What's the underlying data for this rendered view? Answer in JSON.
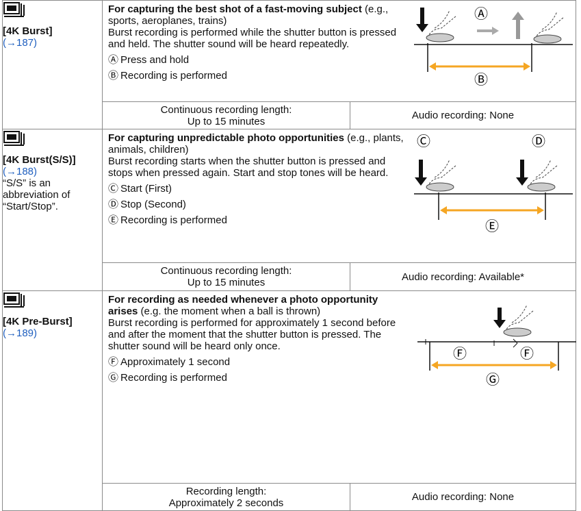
{
  "rows": [
    {
      "name": "[4K Burst]",
      "link": "(→187)",
      "heading": "For capturing the best shot of a fast-moving subject",
      "examples": "(e.g., sports, aeroplanes, trains)",
      "body": "Burst recording is performed while the shutter button is pressed and held. The shutter sound will be heard repeatedly.",
      "items": [
        {
          "marker": "Ⓐ",
          "text": "Press and hold"
        },
        {
          "marker": "Ⓑ",
          "text": "Recording is performed"
        }
      ],
      "recording_length": [
        "Continuous recording length:",
        "Up to 15 minutes"
      ],
      "audio": "Audio recording: None"
    },
    {
      "name": "[4K Burst(S/S)]",
      "link": "(→188)",
      "note": "“S/S” is an abbreviation of “Start/Stop”.",
      "heading": "For capturing unpredictable photo opportunities",
      "examples": "(e.g., plants, animals, children)",
      "body": "Burst recording starts when the shutter button is pressed and stops when pressed again. Start and stop tones will be heard.",
      "items": [
        {
          "marker": "Ⓒ",
          "text": "Start (First)"
        },
        {
          "marker": "Ⓓ",
          "text": "Stop (Second)"
        },
        {
          "marker": "Ⓔ",
          "text": "Recording is performed"
        }
      ],
      "recording_length": [
        "Continuous recording length:",
        "Up to 15 minutes"
      ],
      "audio": "Audio recording: Available*"
    },
    {
      "name": "[4K Pre-Burst]",
      "link": "(→189)",
      "heading": "For recording as needed whenever a photo opportunity arises",
      "examples": "(e.g. the moment when a ball is thrown)",
      "body": "Burst recording is performed for approximately 1 second before and after the moment that the shutter button is pressed. The shutter sound will be heard only once.",
      "items": [
        {
          "marker": "Ⓕ",
          "text": "Approximately 1 second"
        },
        {
          "marker": "Ⓖ",
          "text": "Recording is performed"
        }
      ],
      "recording_length": [
        "Recording length:",
        "Approximately 2 seconds"
      ],
      "audio": "Audio recording: None"
    }
  ]
}
